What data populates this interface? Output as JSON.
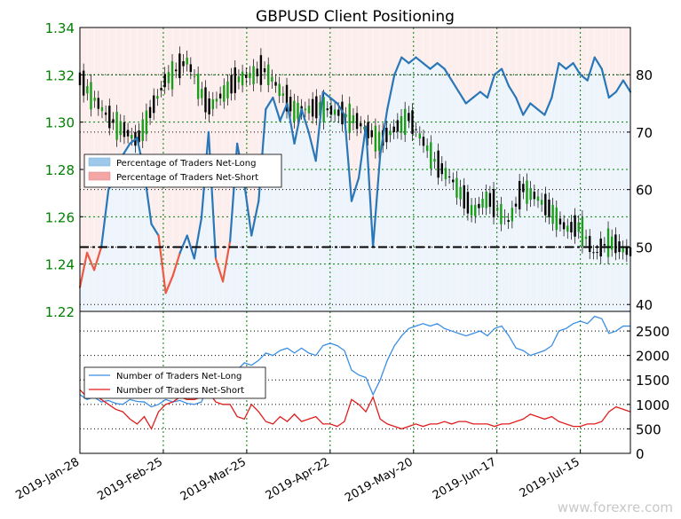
{
  "chart_data": [
    {
      "type": "candlestick+line",
      "title": "GBPUSD Client Positioning",
      "price_axis": {
        "side": "left",
        "ylim": [
          1.22,
          1.34
        ],
        "ticks": [
          "1.22",
          "1.24",
          "1.26",
          "1.28",
          "1.30",
          "1.32",
          "1.34"
        ],
        "color": "#008000"
      },
      "percent_axis": {
        "side": "right",
        "ylim": [
          38.8,
          88.2
        ],
        "ticks": [
          "40",
          "50",
          "60",
          "70",
          "80"
        ]
      },
      "reference_level": 50,
      "legend": {
        "position": "center-left",
        "entries": [
          {
            "label": "Percentage of Traders Net-Long",
            "color": "#9fc9ea"
          },
          {
            "label": "Percentage of Traders Net-Short",
            "color": "#f2a6a6"
          }
        ]
      },
      "series_pct_long": {
        "x": [
          "2019-01-28",
          "2019-01-30",
          "2019-02-01",
          "2019-02-04",
          "2019-02-06",
          "2019-02-08",
          "2019-02-11",
          "2019-02-13",
          "2019-02-15",
          "2019-02-18",
          "2019-02-20",
          "2019-02-22",
          "2019-02-25",
          "2019-02-27",
          "2019-03-01",
          "2019-03-04",
          "2019-03-06",
          "2019-03-08",
          "2019-03-11",
          "2019-03-13",
          "2019-03-15",
          "2019-03-18",
          "2019-03-20",
          "2019-03-22",
          "2019-03-25",
          "2019-03-27",
          "2019-03-29",
          "2019-04-01",
          "2019-04-03",
          "2019-04-05",
          "2019-04-08",
          "2019-04-10",
          "2019-04-12",
          "2019-04-15",
          "2019-04-17",
          "2019-04-19",
          "2019-04-22",
          "2019-04-24",
          "2019-04-26",
          "2019-04-29",
          "2019-05-01",
          "2019-05-03",
          "2019-05-06",
          "2019-05-08",
          "2019-05-10",
          "2019-05-13",
          "2019-05-15",
          "2019-05-17",
          "2019-05-20",
          "2019-05-22",
          "2019-05-24",
          "2019-05-27",
          "2019-05-29",
          "2019-05-31",
          "2019-06-03",
          "2019-06-05",
          "2019-06-07",
          "2019-06-10",
          "2019-06-12",
          "2019-06-14",
          "2019-06-17",
          "2019-06-19",
          "2019-06-21",
          "2019-06-24",
          "2019-06-26",
          "2019-06-28",
          "2019-07-01",
          "2019-07-03",
          "2019-07-05",
          "2019-07-08",
          "2019-07-10",
          "2019-07-12",
          "2019-07-15",
          "2019-07-17",
          "2019-07-19",
          "2019-07-22",
          "2019-07-24",
          "2019-07-26"
        ],
        "values": [
          43,
          49,
          46,
          50,
          60,
          62,
          66,
          68,
          69,
          63,
          54,
          52,
          42,
          45,
          49,
          52,
          48,
          55,
          70,
          48,
          44,
          51,
          68,
          61,
          52,
          58,
          74,
          76,
          72,
          75,
          68,
          74,
          70,
          65,
          77,
          76,
          75,
          73,
          58,
          62,
          71,
          50,
          66,
          74,
          80,
          83,
          82,
          83,
          82,
          81,
          82,
          81,
          79,
          77,
          75,
          76,
          77,
          76,
          80,
          81,
          78,
          76,
          73,
          75,
          74,
          73,
          76,
          82,
          81,
          82,
          80,
          79,
          83,
          81,
          76,
          77,
          79,
          77
        ]
      },
      "pct_long_shaded_above_50": true
    },
    {
      "type": "line",
      "ylim": [
        0,
        2900
      ],
      "yticks": [
        "0",
        "500",
        "1000",
        "1500",
        "2000",
        "2500"
      ],
      "legend": {
        "position": "center-left",
        "entries": [
          {
            "label": "Number of Traders Net-Long",
            "color": "#3a8ee6"
          },
          {
            "label": "Number of Traders Net-Short",
            "color": "#e01d1d"
          }
        ]
      },
      "x_ticks": [
        "2019-Jan-28",
        "2019-Feb-25",
        "2019-Mar-25",
        "2019-Apr-22",
        "2019-May-20",
        "2019-Jun-17",
        "2019-Jul-15"
      ],
      "series": [
        {
          "name": "Number of Traders Net-Long",
          "color": "#3a8ee6",
          "values": [
            1200,
            1100,
            1150,
            1050,
            1080,
            1020,
            1000,
            1100,
            1060,
            1050,
            950,
            1000,
            1100,
            1050,
            1080,
            1020,
            1000,
            1050,
            1400,
            1500,
            1450,
            1600,
            1700,
            1850,
            1800,
            1900,
            2050,
            2000,
            2100,
            2150,
            2050,
            2150,
            2050,
            2000,
            2200,
            2250,
            2200,
            2100,
            1700,
            1600,
            1550,
            1200,
            1500,
            1900,
            2200,
            2400,
            2550,
            2600,
            2650,
            2600,
            2650,
            2550,
            2500,
            2450,
            2400,
            2450,
            2500,
            2400,
            2550,
            2600,
            2400,
            2150,
            2100,
            2000,
            2050,
            2100,
            2200,
            2500,
            2550,
            2650,
            2700,
            2650,
            2800,
            2750,
            2450,
            2500,
            2600,
            2600
          ]
        },
        {
          "name": "Number of Traders Net-Short",
          "color": "#e01d1d",
          "values": [
            1300,
            1150,
            1200,
            1100,
            1000,
            900,
            850,
            700,
            600,
            750,
            500,
            850,
            1000,
            1050,
            1150,
            1100,
            1100,
            1150,
            1250,
            1050,
            1000,
            1000,
            750,
            700,
            1000,
            850,
            650,
            600,
            750,
            650,
            800,
            650,
            700,
            750,
            600,
            600,
            550,
            650,
            1100,
            1000,
            850,
            1150,
            700,
            600,
            550,
            500,
            550,
            600,
            550,
            600,
            600,
            650,
            600,
            650,
            650,
            600,
            600,
            600,
            550,
            600,
            600,
            650,
            700,
            800,
            750,
            700,
            750,
            650,
            600,
            550,
            550,
            600,
            600,
            650,
            850,
            950,
            900,
            850
          ]
        }
      ]
    }
  ],
  "watermark": "www.forexre.com"
}
